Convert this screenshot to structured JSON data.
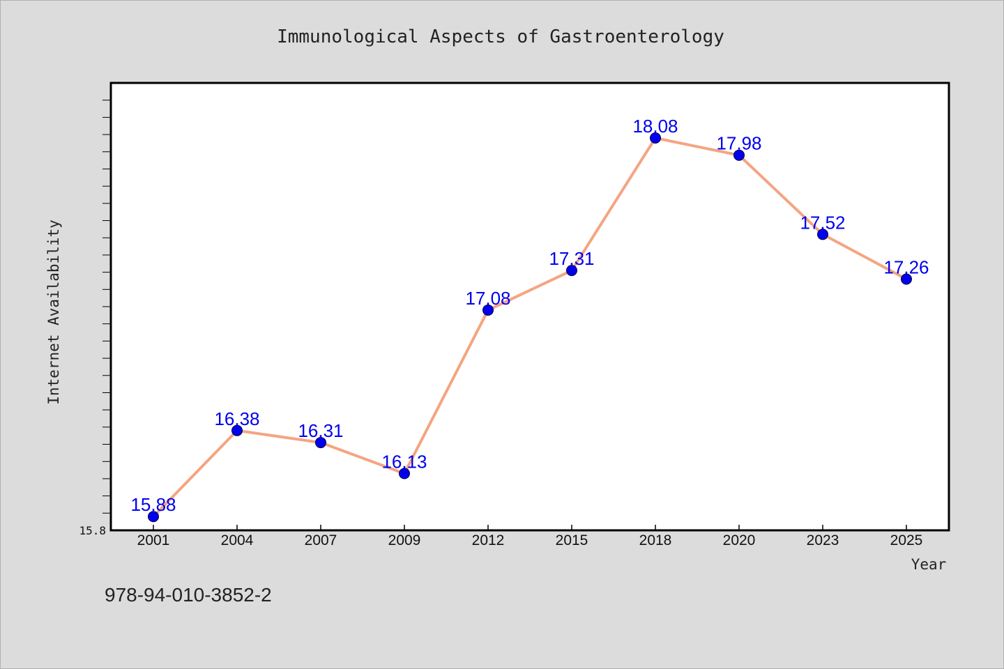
{
  "chart_data": {
    "type": "line",
    "title": "Immunological Aspects of Gastroenterology",
    "xlabel": "Year",
    "ylabel": "Internet Availability",
    "categories": [
      "2001",
      "2004",
      "2007",
      "2009",
      "2012",
      "2015",
      "2018",
      "2020",
      "2023",
      "2025"
    ],
    "series": [
      {
        "values": [
          15.88,
          16.38,
          16.31,
          16.13,
          17.08,
          17.31,
          18.08,
          17.98,
          17.52,
          17.26
        ],
        "data_labels": [
          "15.88",
          "16.38",
          "16.31",
          "16.13",
          "17.08",
          "17.31",
          "18.08",
          "17.98",
          "17.52",
          "17.26"
        ],
        "line_color": "#f4a582",
        "marker_color": "#0000ee"
      }
    ],
    "ylim": [
      15.8,
      18.4
    ],
    "y_tick_labels": [
      "15.8"
    ],
    "grid": false,
    "background": "#dcdcdc",
    "plot_background": "#ffffff"
  },
  "footer": {
    "code": "978-94-010-3852-2"
  }
}
